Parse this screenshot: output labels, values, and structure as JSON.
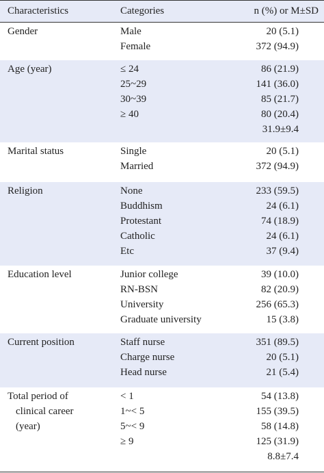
{
  "table": {
    "header": [
      "Characteristics",
      "Categories",
      "n (%) or M±SD"
    ],
    "groups": [
      {
        "characteristic": [
          "Gender"
        ],
        "rows": [
          [
            "Male",
            "20 (5.1)"
          ],
          [
            "Female",
            "372 (94.9)"
          ]
        ]
      },
      {
        "characteristic": [
          "Age (year)"
        ],
        "rows": [
          [
            "≤ 24",
            "86 (21.9)"
          ],
          [
            "25~29",
            "141 (36.0)"
          ],
          [
            "30~39",
            "85 (21.7)"
          ],
          [
            "≥ 40",
            "80 (20.4)"
          ],
          [
            null,
            "31.9±9.4"
          ]
        ]
      },
      {
        "characteristic": [
          "Marital status"
        ],
        "rows": [
          [
            "Single",
            "20 (5.1)"
          ],
          [
            "Married",
            "372 (94.9)"
          ]
        ]
      },
      {
        "characteristic": [
          "Religion"
        ],
        "rows": [
          [
            "None",
            "233 (59.5)"
          ],
          [
            "Buddhism",
            "24 (6.1)"
          ],
          [
            "Protestant",
            "74 (18.9)"
          ],
          [
            "Catholic",
            "24 (6.1)"
          ],
          [
            "Etc",
            "37 (9.4)"
          ]
        ]
      },
      {
        "characteristic": [
          "Education level"
        ],
        "rows": [
          [
            "Junior college",
            "39 (10.0)"
          ],
          [
            "RN-BSN",
            "82 (20.9)"
          ],
          [
            "University",
            "256 (65.3)"
          ],
          [
            "Graduate university",
            "15 (3.8)"
          ]
        ]
      },
      {
        "characteristic": [
          "Current position"
        ],
        "rows": [
          [
            "Staff nurse",
            "351 (89.5)"
          ],
          [
            "Charge nurse",
            "20 (5.1)"
          ],
          [
            "Head nurse",
            "21 (5.4)"
          ]
        ]
      },
      {
        "characteristic": [
          "Total period of",
          "clinical career",
          "(year)"
        ],
        "rows": [
          [
            "< 1",
            "54 (13.8)"
          ],
          [
            "1~< 5",
            "155 (39.5)"
          ],
          [
            "5~< 9",
            "58 (14.8)"
          ],
          [
            "≥ 9",
            "125 (31.9)"
          ],
          [
            null,
            "8.8±7.4"
          ]
        ]
      }
    ]
  }
}
